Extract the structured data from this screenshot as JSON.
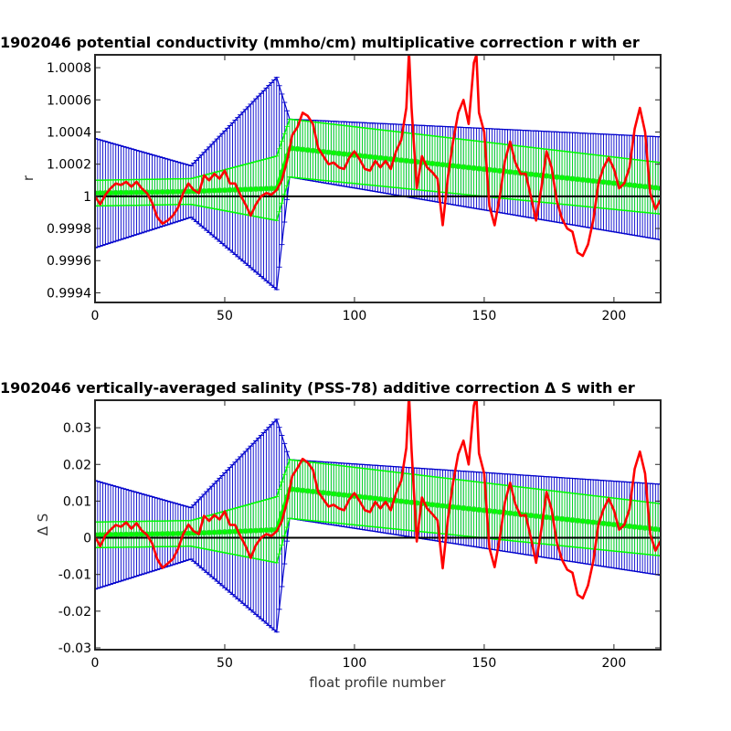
{
  "chart_data": [
    {
      "type": "line",
      "title": "1902046 potential conductivity (mmho/cm) multiplicative correction r with er",
      "xlabel": "",
      "ylabel": "r",
      "xlim": [
        0,
        218
      ],
      "ylim": [
        0.99934,
        1.00088
      ],
      "xticks": [
        0,
        50,
        100,
        150,
        200
      ],
      "xtick_labels": [
        "0",
        "50",
        "100",
        "150",
        "200"
      ],
      "yticks": [
        0.9994,
        0.9996,
        0.9998,
        1.0,
        1.0002,
        1.0004,
        1.0006,
        1.0008
      ],
      "ytick_labels": [
        "0.9994",
        "0.9996",
        "0.9998",
        "1",
        "1.0002",
        "1.0004",
        "1.0006",
        "1.0008"
      ],
      "reference_line": 1.0,
      "colors": {
        "raw": "#ff0000",
        "fit": "#00ff00",
        "fit_err": "#00ff00",
        "envelope": "#0000cc",
        "reference": "#000000"
      },
      "series": [
        {
          "role": "raw",
          "x": [
            0,
            2,
            4,
            6,
            8,
            10,
            12,
            14,
            16,
            18,
            20,
            22,
            24,
            26,
            28,
            30,
            32,
            34,
            36,
            38,
            40,
            42,
            44,
            46,
            48,
            50,
            52,
            54,
            56,
            58,
            60,
            62,
            64,
            66,
            68,
            70,
            72,
            74,
            76,
            78,
            80,
            82,
            84,
            86,
            88,
            90,
            92,
            94,
            96,
            98,
            100,
            102,
            104,
            106,
            108,
            110,
            112,
            114,
            116,
            118,
            120,
            121,
            122,
            124,
            126,
            128,
            130,
            132,
            134,
            136,
            138,
            140,
            142,
            144,
            146,
            147,
            148,
            150,
            152,
            154,
            156,
            158,
            160,
            162,
            164,
            166,
            168,
            170,
            172,
            174,
            176,
            178,
            180,
            182,
            184,
            186,
            188,
            190,
            192,
            194,
            196,
            198,
            200,
            202,
            204,
            206,
            208,
            210,
            212,
            214,
            216,
            218
          ],
          "y": [
            1.0,
            0.99995,
            1.00001,
            1.00005,
            1.00008,
            1.00007,
            1.00009,
            1.00006,
            1.00009,
            1.00005,
            1.00002,
            0.99996,
            0.99987,
            0.99983,
            0.99985,
            0.99988,
            0.99993,
            1.00002,
            1.00008,
            1.00004,
            1.00002,
            1.00013,
            1.0001,
            1.00014,
            1.00011,
            1.00016,
            1.00008,
            1.00008,
            1.00001,
            0.99995,
            0.99988,
            0.99995,
            1.0,
            1.00002,
            1.00001,
            1.00004,
            1.0001,
            1.00022,
            1.00038,
            1.00043,
            1.00052,
            1.0005,
            1.00045,
            1.0003,
            1.00025,
            1.0002,
            1.00021,
            1.00018,
            1.00017,
            1.00024,
            1.00028,
            1.00023,
            1.00017,
            1.00016,
            1.00022,
            1.00018,
            1.00022,
            1.00017,
            1.00028,
            1.00035,
            1.00055,
            1.0009,
            1.00055,
            1.00005,
            1.00025,
            1.00018,
            1.00015,
            1.00011,
            0.99982,
            1.00012,
            1.00034,
            1.00052,
            1.0006,
            1.00045,
            1.00083,
            1.00088,
            1.00052,
            1.0004,
            0.99994,
            0.99982,
            1.0,
            1.00022,
            1.00034,
            1.00021,
            1.00014,
            1.00014,
            1.0,
            0.99985,
            1.00005,
            1.00028,
            1.00018,
            0.99997,
            0.99986,
            0.9998,
            0.99978,
            0.99965,
            0.99963,
            0.9997,
            0.99985,
            1.00008,
            1.00018,
            1.00024,
            1.00017,
            1.00005,
            1.00008,
            1.00018,
            1.00042,
            1.00055,
            1.0004,
            1.00002,
            0.99992,
            0.99998
          ]
        },
        {
          "role": "fit",
          "x": [
            0,
            37,
            70,
            75,
            218
          ],
          "y": [
            1.00002,
            1.00003,
            1.00005,
            1.0003,
            1.00005
          ],
          "err": [
            8e-05,
            8e-05,
            0.0002,
            0.00018,
            0.00016
          ]
        },
        {
          "role": "envelope",
          "x": [
            0,
            37,
            70,
            75,
            218
          ],
          "y": [
            1.00002,
            1.00003,
            1.00008,
            1.0003,
            1.00005
          ],
          "err": [
            0.00034,
            0.00016,
            0.00066,
            0.00018,
            0.00032
          ]
        }
      ]
    },
    {
      "type": "line",
      "title": "1902046 vertically-averaged salinity (PSS-78) additive correction Δ S with er",
      "xlabel": "float profile number",
      "ylabel": "Δ S",
      "xlim": [
        0,
        218
      ],
      "ylim": [
        -0.0305,
        0.0375
      ],
      "xticks": [
        0,
        50,
        100,
        150,
        200
      ],
      "xtick_labels": [
        "0",
        "50",
        "100",
        "150",
        "200"
      ],
      "yticks": [
        -0.03,
        -0.02,
        -0.01,
        0,
        0.01,
        0.02,
        0.03
      ],
      "ytick_labels": [
        "-0.03",
        "-0.02",
        "-0.01",
        "0",
        "0.01",
        "0.02",
        "0.03"
      ],
      "reference_line": 0,
      "colors": {
        "raw": "#ff0000",
        "fit": "#00ff00",
        "fit_err": "#00ff00",
        "envelope": "#0000cc",
        "reference": "#000000"
      },
      "series": [
        {
          "role": "raw",
          "x": [
            0,
            2,
            4,
            6,
            8,
            10,
            12,
            14,
            16,
            18,
            20,
            22,
            24,
            26,
            28,
            30,
            32,
            34,
            36,
            38,
            40,
            42,
            44,
            46,
            48,
            50,
            52,
            54,
            56,
            58,
            60,
            62,
            64,
            66,
            68,
            70,
            72,
            74,
            76,
            78,
            80,
            82,
            84,
            86,
            88,
            90,
            92,
            94,
            96,
            98,
            100,
            102,
            104,
            106,
            108,
            110,
            112,
            114,
            116,
            118,
            120,
            121,
            122,
            124,
            126,
            128,
            130,
            132,
            134,
            136,
            138,
            140,
            142,
            144,
            146,
            147,
            148,
            150,
            152,
            154,
            156,
            158,
            160,
            162,
            164,
            166,
            168,
            170,
            172,
            174,
            176,
            178,
            180,
            182,
            184,
            186,
            188,
            190,
            192,
            194,
            196,
            198,
            200,
            202,
            204,
            206,
            208,
            210,
            212,
            214,
            216,
            218
          ],
          "y": [
            0.0003,
            -0.0023,
            0.0007,
            0.0022,
            0.0035,
            0.003,
            0.0042,
            0.0025,
            0.004,
            0.002,
            0.0008,
            -0.0015,
            -0.0058,
            -0.0082,
            -0.007,
            -0.0058,
            -0.003,
            0.001,
            0.0036,
            0.0018,
            0.001,
            0.006,
            0.0046,
            0.0062,
            0.005,
            0.0072,
            0.0035,
            0.0035,
            0.0005,
            -0.0022,
            -0.0055,
            -0.002,
            0.0,
            0.001,
            0.0005,
            0.0018,
            0.0045,
            0.0098,
            0.0168,
            0.019,
            0.0215,
            0.0205,
            0.0185,
            0.0125,
            0.0105,
            0.0085,
            0.009,
            0.008,
            0.0075,
            0.0105,
            0.0122,
            0.01,
            0.0075,
            0.007,
            0.0098,
            0.008,
            0.0098,
            0.0075,
            0.0122,
            0.0155,
            0.0245,
            0.039,
            0.024,
            -0.001,
            0.011,
            0.008,
            0.0065,
            0.0048,
            -0.0083,
            0.0052,
            0.015,
            0.0228,
            0.0265,
            0.02,
            0.036,
            0.0385,
            0.023,
            0.0175,
            -0.0028,
            -0.008,
            0.0,
            0.0097,
            0.015,
            0.0092,
            0.006,
            0.0062,
            0.0,
            -0.0068,
            0.0022,
            0.0125,
            0.0078,
            -0.0013,
            -0.006,
            -0.0087,
            -0.0095,
            -0.0155,
            -0.0165,
            -0.013,
            -0.0065,
            0.0036,
            0.0078,
            0.0107,
            0.0075,
            0.0022,
            0.0035,
            0.0078,
            0.0188,
            0.0235,
            0.0175,
            0.001,
            -0.0035,
            -0.0008
          ]
        },
        {
          "role": "fit",
          "x": [
            0,
            37,
            70,
            75,
            218
          ],
          "y": [
            0.0008,
            0.0012,
            0.0022,
            0.0133,
            0.0022
          ],
          "err": [
            0.0035,
            0.0035,
            0.009,
            0.008,
            0.0071
          ]
        },
        {
          "role": "envelope",
          "x": [
            0,
            37,
            70,
            75,
            218
          ],
          "y": [
            0.0008,
            0.0012,
            0.0033,
            0.0133,
            0.0022
          ],
          "err": [
            0.0148,
            0.007,
            0.029,
            0.008,
            0.0124
          ]
        }
      ]
    }
  ]
}
